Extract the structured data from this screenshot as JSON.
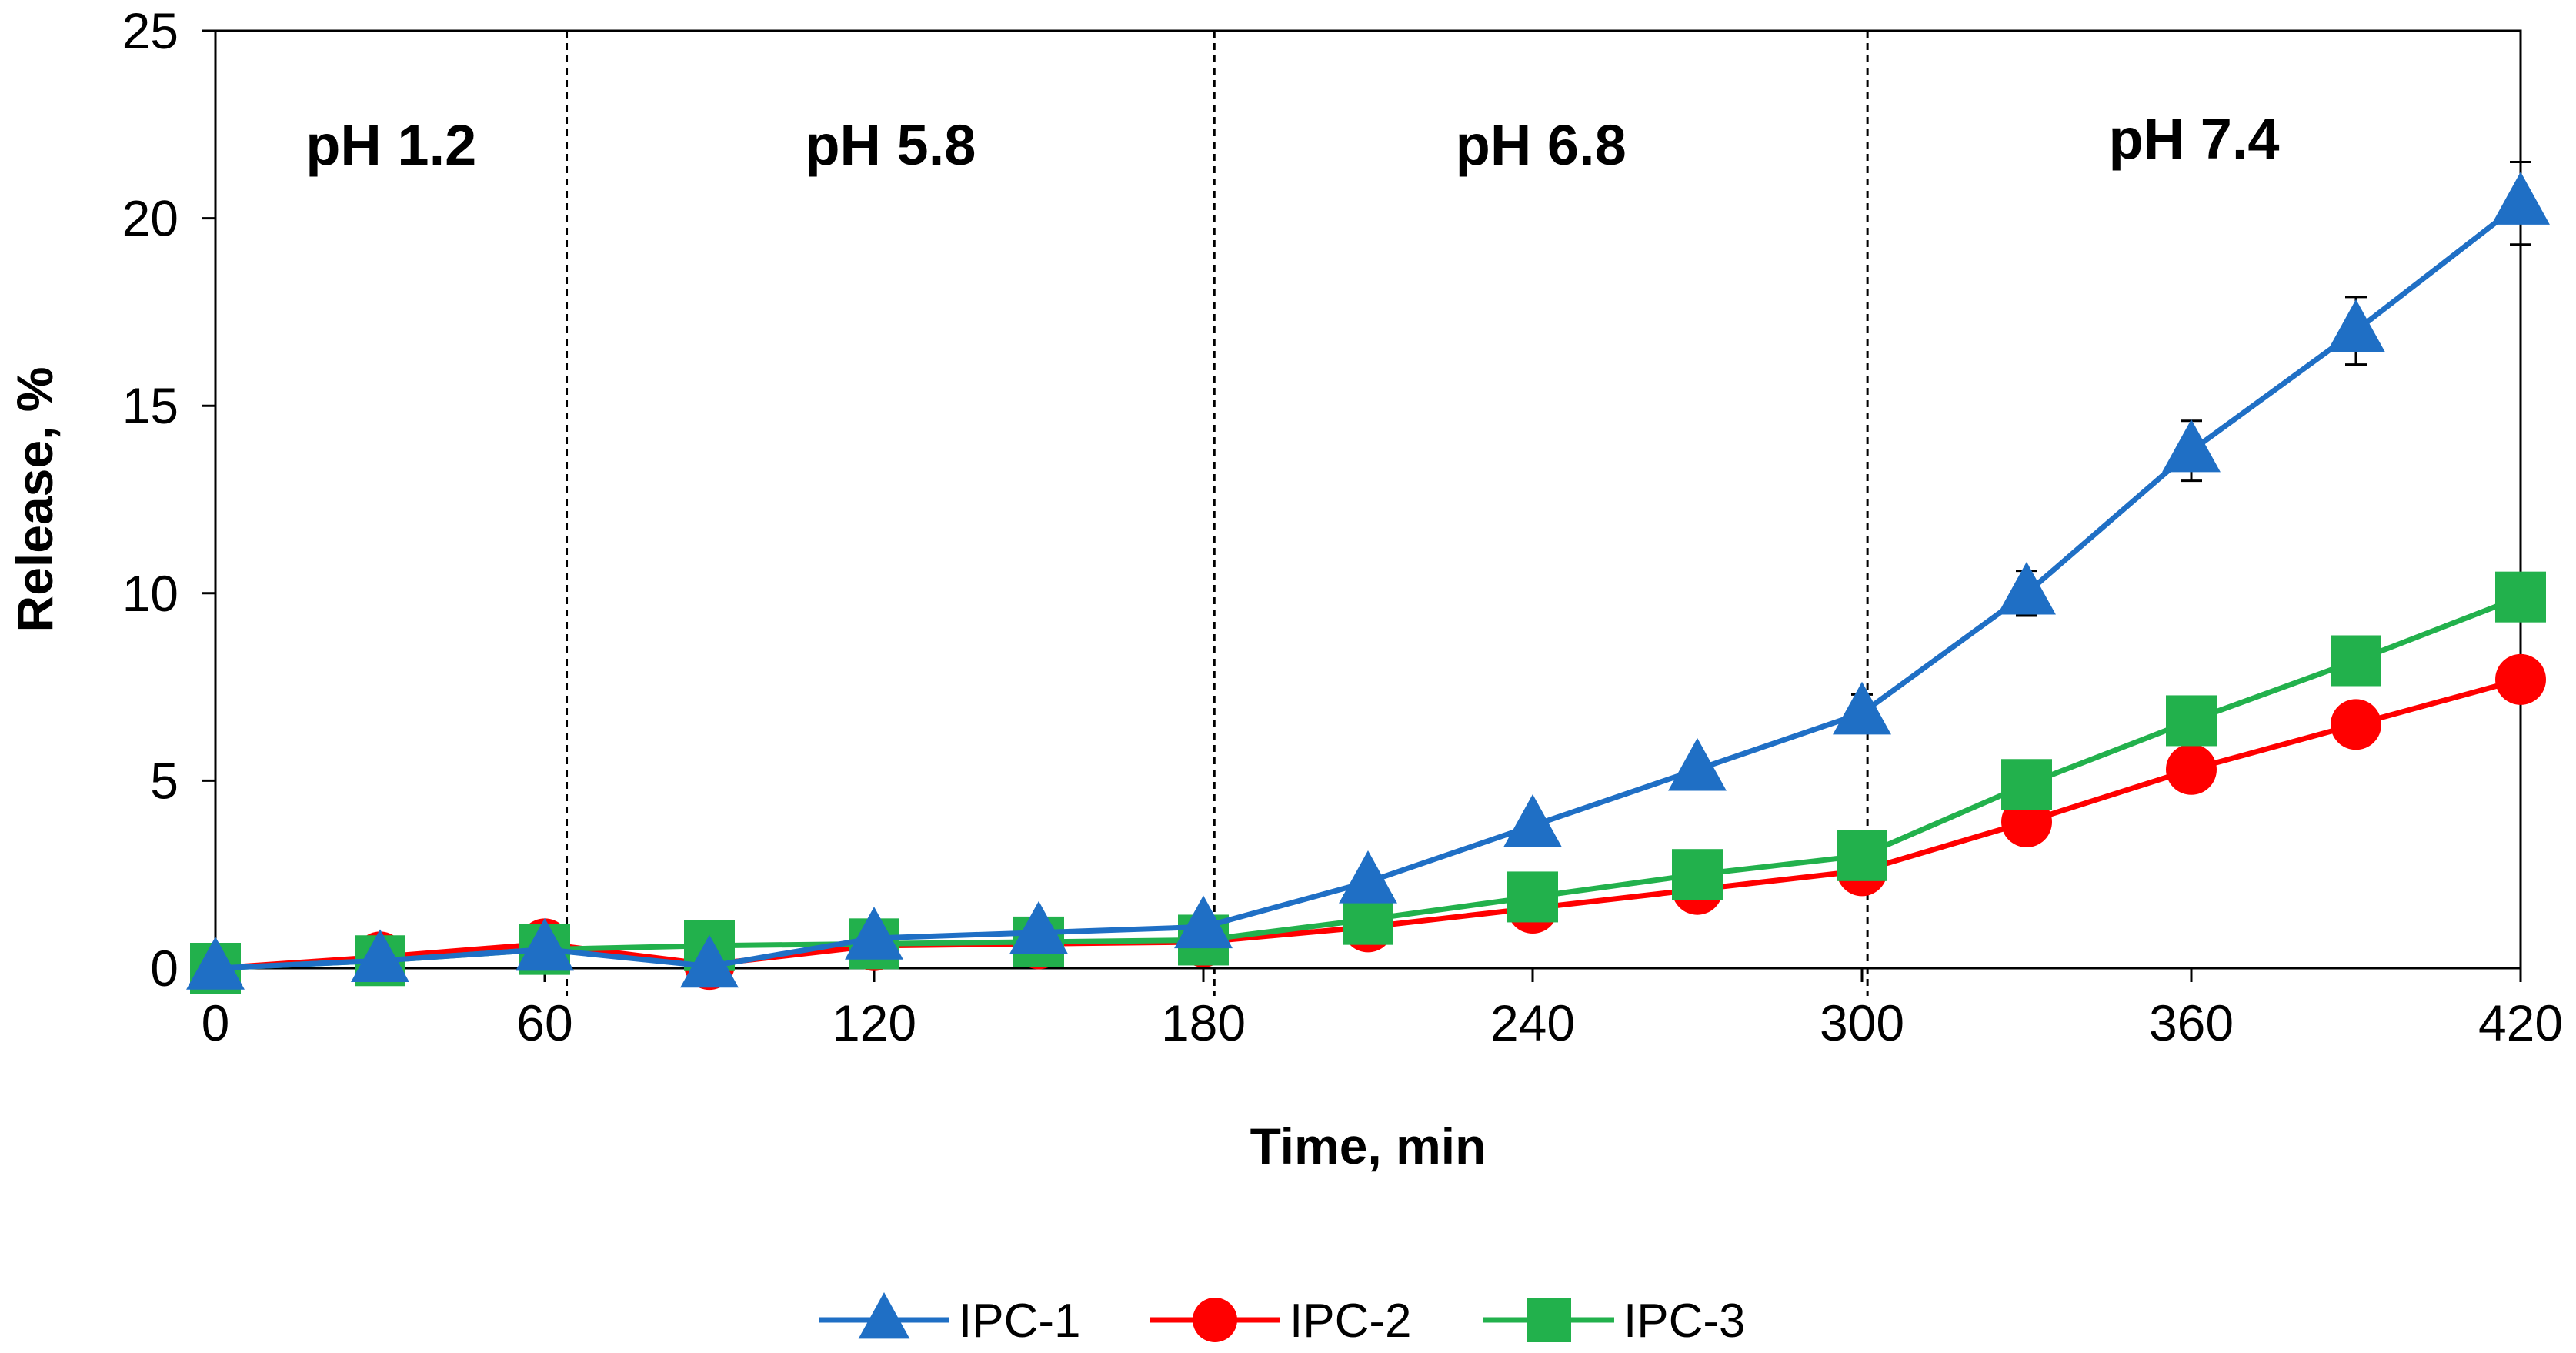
{
  "chart_data": {
    "type": "line",
    "title": "",
    "xlabel": "Time, min",
    "ylabel": "Release, %",
    "xlim": [
      0,
      420
    ],
    "ylim": [
      0,
      25
    ],
    "xticks": [
      0,
      60,
      120,
      180,
      240,
      300,
      360,
      420
    ],
    "yticks": [
      0,
      5,
      10,
      15,
      20,
      25
    ],
    "grid": false,
    "legend_position": "bottom",
    "x": [
      0,
      30,
      60,
      90,
      120,
      150,
      180,
      210,
      240,
      270,
      300,
      330,
      360,
      390,
      420
    ],
    "regions": [
      {
        "label": "pH 1.2",
        "x_start": 0,
        "x_end": 64
      },
      {
        "label": "pH 5.8",
        "x_start": 64,
        "x_end": 182
      },
      {
        "label": "pH 6.8",
        "x_start": 182,
        "x_end": 301
      },
      {
        "label": "pH 7.4",
        "x_start": 301,
        "x_end": 420
      }
    ],
    "region_dividers": [
      64,
      182,
      301
    ],
    "series": [
      {
        "name": "IPC-1",
        "color": "#1f6fc5",
        "marker": "triangle",
        "values": [
          0,
          0.2,
          0.5,
          0.05,
          0.8,
          0.95,
          1.1,
          2.3,
          3.8,
          5.3,
          6.8,
          10.0,
          13.8,
          17.0,
          20.4
        ],
        "errors": [
          0,
          0,
          0,
          0,
          0,
          0,
          0,
          0,
          0,
          0,
          0.5,
          0.6,
          0.8,
          0.9,
          1.1
        ]
      },
      {
        "name": "IPC-2",
        "color": "#ff0000",
        "marker": "circle",
        "values": [
          0,
          0.3,
          0.65,
          0.1,
          0.6,
          0.65,
          0.7,
          1.1,
          1.6,
          2.1,
          2.6,
          3.9,
          5.3,
          6.5,
          7.7
        ],
        "errors": []
      },
      {
        "name": "IPC-3",
        "color": "#22b14c",
        "marker": "square",
        "values": [
          0,
          0.2,
          0.5,
          0.6,
          0.65,
          0.7,
          0.75,
          1.3,
          1.9,
          2.5,
          3.0,
          4.9,
          6.6,
          8.2,
          9.9
        ],
        "errors": []
      }
    ]
  }
}
